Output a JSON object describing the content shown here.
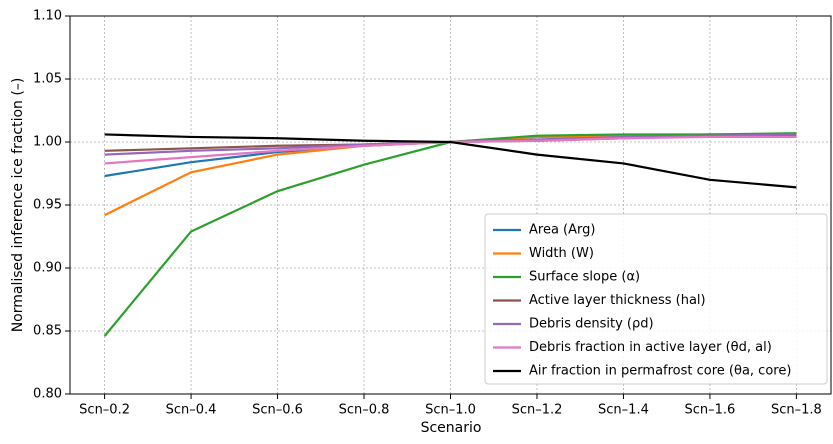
{
  "chart_data": {
    "type": "line",
    "x_label": "Scenario",
    "y_label": "Normalised inference ice fraction (–)",
    "categories": [
      "Scn–0.2",
      "Scn–0.4",
      "Scn–0.6",
      "Scn–0.8",
      "Scn–1.0",
      "Scn–1.2",
      "Scn–1.4",
      "Scn–1.6",
      "Scn–1.8"
    ],
    "series": [
      {
        "name": "Area (Arg)",
        "color": "#1f77b4",
        "values": [
          0.973,
          0.984,
          0.992,
          0.997,
          1.0,
          1.004,
          1.005,
          1.006,
          1.006
        ]
      },
      {
        "name": "Width (W)",
        "color": "#ff7f0e",
        "values": [
          0.942,
          0.976,
          0.99,
          0.997,
          1.0,
          1.004,
          1.005,
          1.006,
          1.006
        ]
      },
      {
        "name": "Surface slope (α)",
        "color": "#2ca02c",
        "values": [
          0.846,
          0.929,
          0.961,
          0.982,
          1.0,
          1.005,
          1.006,
          1.006,
          1.007
        ]
      },
      {
        "name": "Active layer thickness (hal)",
        "color": "#8c564b",
        "values": [
          0.993,
          0.995,
          0.997,
          0.998,
          1.0,
          1.001,
          1.003,
          1.005,
          1.005
        ]
      },
      {
        "name": "Debris density (ρd)",
        "color": "#9467bd",
        "values": [
          0.99,
          0.993,
          0.995,
          0.998,
          1.0,
          1.002,
          1.004,
          1.005,
          1.006
        ]
      },
      {
        "name": "Debris fraction in active layer (θd, al)",
        "color": "#e377c2",
        "values": [
          0.983,
          0.988,
          0.993,
          0.997,
          1.0,
          1.001,
          1.003,
          1.004,
          1.004
        ]
      },
      {
        "name": "Air fraction in permafrost core (θa, core)",
        "color": "#000000",
        "values": [
          1.006,
          1.004,
          1.003,
          1.001,
          1.0,
          0.99,
          0.983,
          0.97,
          0.964
        ]
      }
    ],
    "ylim": [
      0.8,
      1.1
    ],
    "yticks": [
      {
        "value": 0.8,
        "label": "0.80"
      },
      0.85,
      {
        "value": 0.9,
        "label": "0.90"
      },
      0.95,
      {
        "value": 1.0,
        "label": "1.00"
      },
      1.05,
      {
        "value": 1.1,
        "label": "1.10"
      }
    ],
    "grid": true,
    "legend": "lower right"
  }
}
